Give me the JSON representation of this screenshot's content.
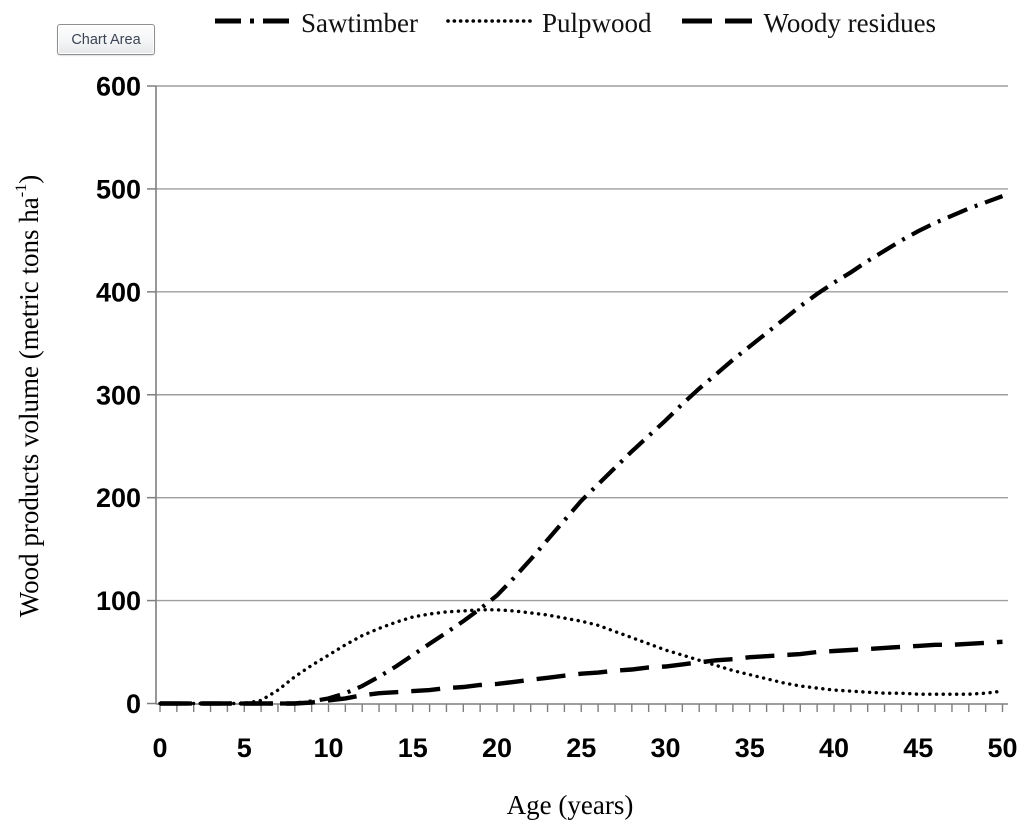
{
  "window": {
    "background": "#ffffff"
  },
  "tooltip": {
    "label": "Chart Area"
  },
  "legend": {
    "position": "top",
    "items": [
      {
        "label": "Sawtimber",
        "line_style": "dash-dot"
      },
      {
        "label": "Pulpwood",
        "line_style": "dotted"
      },
      {
        "label": "Woody residues",
        "line_style": "long-dash"
      }
    ]
  },
  "colors": {
    "series": "#000000",
    "grid": "#9e9e9e",
    "axis": "#7f7f7f",
    "tick_label": "#000000",
    "tooltip_text": "#3c4454",
    "tooltip_border": "#8f8f8f"
  },
  "chart_data": {
    "type": "line",
    "title": "",
    "xlabel": "Age (years)",
    "ylabel": "Wood products volume (metric tons ha⁻¹)",
    "ylabel_parts": {
      "base": "Wood products volume (metric tons ha",
      "superscript": "-1",
      "suffix": ")"
    },
    "xlim": [
      0,
      50
    ],
    "ylim": [
      0,
      600
    ],
    "x_ticks": [
      0,
      5,
      10,
      15,
      20,
      25,
      30,
      35,
      40,
      45,
      50
    ],
    "y_ticks": [
      0,
      100,
      200,
      300,
      400,
      500,
      600
    ],
    "x_minor_tick_interval": 1,
    "grid": "horizontal-only",
    "legend_position": "top",
    "x": [
      0,
      1,
      2,
      3,
      4,
      5,
      6,
      7,
      8,
      9,
      10,
      11,
      12,
      13,
      14,
      15,
      16,
      17,
      18,
      19,
      20,
      21,
      22,
      23,
      24,
      25,
      26,
      27,
      28,
      29,
      30,
      31,
      32,
      33,
      34,
      35,
      36,
      37,
      38,
      39,
      40,
      41,
      42,
      43,
      44,
      45,
      46,
      47,
      48,
      49,
      50
    ],
    "series": [
      {
        "name": "Sawtimber",
        "line_style": "dash-dot",
        "values": [
          0,
          0,
          0,
          0,
          0,
          0,
          0,
          0,
          0,
          2,
          5,
          10,
          17,
          26,
          36,
          47,
          58,
          69,
          80,
          92,
          105,
          122,
          140,
          159,
          178,
          197,
          213,
          229,
          245,
          260,
          275,
          291,
          306,
          320,
          334,
          347,
          360,
          373,
          386,
          398,
          409,
          419,
          430,
          440,
          450,
          459,
          467,
          474,
          481,
          487,
          493
        ]
      },
      {
        "name": "Pulpwood",
        "line_style": "dotted",
        "values": [
          0,
          0,
          0,
          0,
          0,
          0,
          3,
          13,
          26,
          37,
          47,
          57,
          66,
          73,
          79,
          84,
          87,
          89,
          90,
          91,
          91,
          90,
          88,
          86,
          83,
          80,
          76,
          70,
          64,
          58,
          52,
          47,
          42,
          37,
          32,
          28,
          24,
          20,
          17,
          15,
          13,
          12,
          11,
          10,
          10,
          9,
          9,
          9,
          9,
          10,
          12
        ]
      },
      {
        "name": "Woody residues",
        "line_style": "long-dash",
        "values": [
          0,
          0,
          0,
          0,
          0,
          0,
          0,
          0,
          0,
          1,
          3,
          5,
          8,
          10,
          11,
          12,
          13,
          15,
          16,
          18,
          19,
          21,
          23,
          25,
          27,
          29,
          30,
          32,
          33,
          35,
          36,
          38,
          40,
          42,
          43,
          45,
          46,
          47,
          48,
          50,
          51,
          52,
          53,
          54,
          55,
          56,
          57,
          57,
          58,
          59,
          60
        ]
      }
    ]
  }
}
